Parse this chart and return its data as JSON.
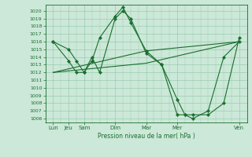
{
  "xlabel": "Pression niveau de la mer( hPa )",
  "background_color": "#cce8d8",
  "plot_bg_color": "#cce8d8",
  "grid_color": "#99ccb0",
  "line_color": "#1a6e2e",
  "ylim": [
    1005.5,
    1020.8
  ],
  "yticks": [
    1006,
    1007,
    1008,
    1009,
    1010,
    1011,
    1012,
    1013,
    1014,
    1015,
    1016,
    1017,
    1018,
    1019,
    1020
  ],
  "x_major_labels": [
    "Lun",
    "Jeu",
    "Sam",
    "Dim",
    "Mar",
    "Mer",
    "Ven"
  ],
  "x_major_positions": [
    0,
    2,
    4,
    8,
    12,
    16,
    24
  ],
  "xlim": [
    -0.5,
    25
  ],
  "series1": {
    "x": [
      0,
      2,
      3,
      4,
      5,
      6,
      8,
      9,
      10,
      12,
      14,
      16,
      17,
      18,
      20,
      22,
      24
    ],
    "y": [
      1016,
      1015,
      1013.5,
      1012,
      1013.5,
      1016.5,
      1019.3,
      1020.5,
      1018.5,
      1014.8,
      1013,
      1008.5,
      1006.5,
      1006.5,
      1006.5,
      1008,
      1016.5
    ]
  },
  "series2": {
    "x": [
      0,
      2,
      3,
      4,
      5,
      6,
      8,
      9,
      10,
      12,
      14,
      16,
      17,
      18,
      20,
      22,
      24
    ],
    "y": [
      1016,
      1013.5,
      1012,
      1012,
      1014,
      1012,
      1019,
      1020,
      1019,
      1014.5,
      1013,
      1006.5,
      1006.5,
      1006,
      1007,
      1014,
      1016
    ]
  },
  "trend1": {
    "x": [
      0,
      12,
      24
    ],
    "y": [
      1012,
      1013.2,
      1016
    ]
  },
  "trend2": {
    "x": [
      0,
      12,
      24
    ],
    "y": [
      1012,
      1014.8,
      1016
    ]
  }
}
